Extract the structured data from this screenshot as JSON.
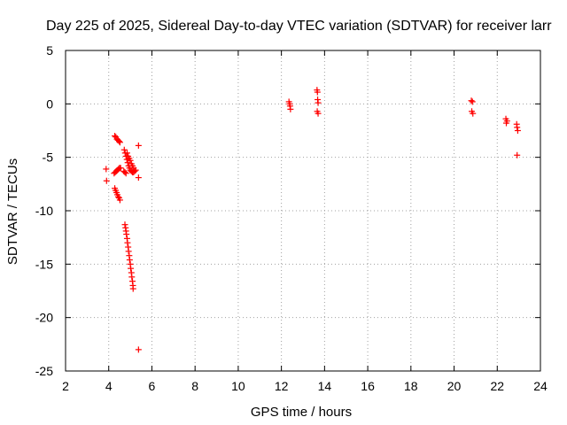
{
  "chart_data": {
    "type": "scatter",
    "title": "Day 225 of 2025, Sidereal Day-to-day VTEC variation (SDTVAR) for receiver larr",
    "xlabel": "GPS time / hours",
    "ylabel": "SDTVAR / TECUs",
    "xlim": [
      2,
      24
    ],
    "ylim": [
      -25,
      5
    ],
    "xticks": [
      2,
      4,
      6,
      8,
      10,
      12,
      14,
      16,
      18,
      20,
      22,
      24
    ],
    "yticks": [
      5,
      0,
      -5,
      -10,
      -15,
      -20,
      -25
    ],
    "grid": true,
    "marker": "plus",
    "series": [
      {
        "name": "SDTVAR",
        "color": "#ff0000",
        "points": [
          [
            3.88,
            -6.1
          ],
          [
            3.9,
            -7.2
          ],
          [
            4.28,
            -3.0
          ],
          [
            4.33,
            -3.1
          ],
          [
            4.38,
            -3.3
          ],
          [
            4.43,
            -3.4
          ],
          [
            4.48,
            -3.5
          ],
          [
            4.52,
            -3.6
          ],
          [
            4.25,
            -6.5
          ],
          [
            4.3,
            -6.4
          ],
          [
            4.35,
            -6.3
          ],
          [
            4.4,
            -6.2
          ],
          [
            4.45,
            -6.1
          ],
          [
            4.5,
            -6.0
          ],
          [
            4.55,
            -6.0
          ],
          [
            4.28,
            -7.9
          ],
          [
            4.32,
            -8.1
          ],
          [
            4.36,
            -8.3
          ],
          [
            4.4,
            -8.5
          ],
          [
            4.44,
            -8.7
          ],
          [
            4.48,
            -8.8
          ],
          [
            4.52,
            -9.0
          ],
          [
            4.72,
            -4.3
          ],
          [
            4.76,
            -4.6
          ],
          [
            4.8,
            -4.9
          ],
          [
            4.84,
            -5.2
          ],
          [
            4.88,
            -5.5
          ],
          [
            4.92,
            -5.8
          ],
          [
            4.96,
            -6.0
          ],
          [
            5.0,
            -6.2
          ],
          [
            5.05,
            -6.3
          ],
          [
            5.1,
            -6.4
          ],
          [
            5.15,
            -6.4
          ],
          [
            5.2,
            -6.3
          ],
          [
            5.25,
            -6.2
          ],
          [
            4.7,
            -6.3
          ],
          [
            4.75,
            -6.4
          ],
          [
            4.8,
            -6.5
          ],
          [
            4.85,
            -4.6
          ],
          [
            4.9,
            -4.9
          ],
          [
            4.95,
            -5.1
          ],
          [
            5.0,
            -5.3
          ],
          [
            5.05,
            -5.6
          ],
          [
            5.1,
            -5.8
          ],
          [
            5.15,
            -6.0
          ],
          [
            5.38,
            -3.9
          ],
          [
            5.38,
            -6.9
          ],
          [
            4.75,
            -11.3
          ],
          [
            4.78,
            -11.6
          ],
          [
            4.8,
            -11.9
          ],
          [
            4.82,
            -12.2
          ],
          [
            4.85,
            -12.6
          ],
          [
            4.87,
            -13.0
          ],
          [
            4.9,
            -13.4
          ],
          [
            4.92,
            -13.8
          ],
          [
            4.95,
            -14.2
          ],
          [
            4.97,
            -14.6
          ],
          [
            5.0,
            -15.0
          ],
          [
            5.02,
            -15.4
          ],
          [
            5.05,
            -15.8
          ],
          [
            5.07,
            -16.2
          ],
          [
            5.1,
            -16.6
          ],
          [
            5.12,
            -17.0
          ],
          [
            5.13,
            -17.3
          ],
          [
            5.38,
            -23.0
          ],
          [
            12.35,
            0.2
          ],
          [
            12.38,
            0.0
          ],
          [
            12.4,
            -0.2
          ],
          [
            12.42,
            -0.5
          ],
          [
            13.65,
            1.3
          ],
          [
            13.67,
            1.1
          ],
          [
            13.68,
            0.4
          ],
          [
            13.7,
            0.1
          ],
          [
            13.66,
            -0.7
          ],
          [
            13.7,
            -0.9
          ],
          [
            20.8,
            0.3
          ],
          [
            20.85,
            0.2
          ],
          [
            20.82,
            -0.7
          ],
          [
            20.87,
            -0.9
          ],
          [
            22.4,
            -1.4
          ],
          [
            22.45,
            -1.6
          ],
          [
            22.42,
            -1.8
          ],
          [
            22.9,
            -1.9
          ],
          [
            22.92,
            -2.2
          ],
          [
            22.95,
            -2.5
          ],
          [
            22.92,
            -4.8
          ]
        ]
      }
    ]
  }
}
